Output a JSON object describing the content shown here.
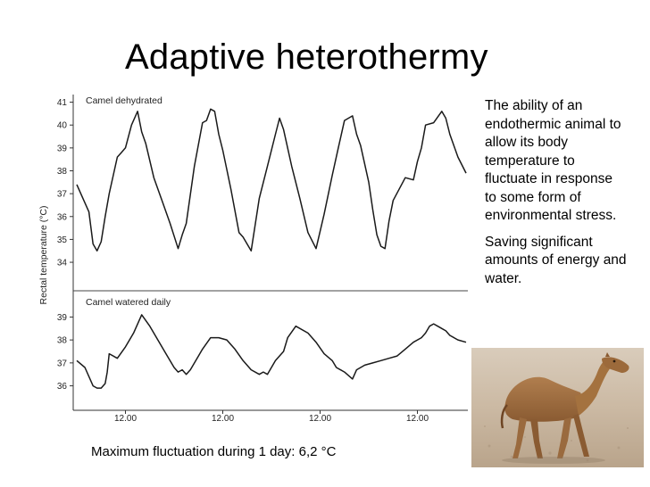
{
  "slide": {
    "title": "Adaptive heterothermy",
    "description": [
      "The ability of an endothermic animal to allow its body temperature to fluctuate in response to some form of environmental stress.",
      "Saving significant amounts of energy and water."
    ],
    "caption": "Maximum fluctuation during 1 day: 6,2 °C"
  },
  "photo": {
    "subject": "camel-icon"
  },
  "chart_data": {
    "type": "line",
    "ylabel": "Rectal temperature (°C)",
    "x_tick_labels": [
      "12.00",
      "12.00",
      "12.00",
      "12.00"
    ],
    "x_tick_hours": [
      12,
      36,
      60,
      84
    ],
    "xlim": [
      0,
      96
    ],
    "line_color": "#1a1a1a",
    "panels": [
      {
        "name": "Camel dehydrated",
        "ylim": [
          33.3,
          41.1
        ],
        "yticks": [
          34,
          35,
          36,
          37,
          38,
          39,
          40,
          41
        ],
        "x": [
          0,
          1,
          3,
          4,
          5,
          6,
          7,
          8,
          10,
          11,
          12,
          13.5,
          15,
          16,
          17,
          19,
          21,
          23,
          25,
          26,
          27,
          29,
          31,
          32,
          33,
          34,
          35,
          36,
          38,
          40,
          41,
          43,
          45,
          47,
          49,
          50,
          51,
          53,
          55,
          57,
          59,
          61,
          63,
          64.5,
          66,
          68,
          69,
          70,
          72,
          73,
          74,
          75,
          76,
          77,
          78,
          81,
          83,
          84,
          85,
          86,
          88,
          90,
          91,
          92,
          94,
          96
        ],
        "y": [
          37.4,
          37.0,
          36.2,
          34.8,
          34.5,
          34.9,
          36.0,
          37.0,
          38.6,
          38.8,
          39.0,
          40.0,
          40.6,
          39.7,
          39.2,
          37.7,
          36.7,
          35.7,
          34.6,
          35.2,
          35.7,
          38.2,
          40.1,
          40.2,
          40.7,
          40.6,
          39.6,
          38.9,
          37.2,
          35.3,
          35.1,
          34.5,
          36.8,
          38.2,
          39.6,
          40.3,
          39.8,
          38.2,
          36.8,
          35.3,
          34.6,
          36.1,
          37.8,
          39.0,
          40.2,
          40.4,
          39.6,
          39.1,
          37.5,
          36.3,
          35.2,
          34.7,
          34.6,
          35.8,
          36.7,
          37.7,
          37.6,
          38.4,
          39.0,
          40.0,
          40.1,
          40.6,
          40.3,
          39.6,
          38.6,
          37.9
        ]
      },
      {
        "name": "Camel watered daily",
        "ylim": [
          35.4,
          39.6
        ],
        "yticks": [
          36,
          37,
          38,
          39
        ],
        "x": [
          0,
          2,
          4,
          5,
          6,
          7,
          7.5,
          8,
          10,
          12,
          14,
          16,
          18,
          20,
          22,
          24,
          25,
          26,
          27,
          28,
          30,
          31,
          33,
          35,
          37,
          39,
          41,
          43,
          45,
          46,
          47,
          49,
          51,
          52,
          54,
          57,
          59,
          61,
          63,
          64,
          66,
          68,
          69,
          71,
          73,
          75,
          77,
          79,
          81,
          83,
          85,
          86,
          87,
          88,
          89,
          90,
          91,
          92,
          94,
          96
        ],
        "y": [
          37.1,
          36.8,
          36.0,
          35.9,
          35.9,
          36.1,
          36.6,
          37.4,
          37.2,
          37.7,
          38.3,
          39.1,
          38.6,
          38.0,
          37.4,
          36.8,
          36.6,
          36.7,
          36.5,
          36.7,
          37.3,
          37.6,
          38.1,
          38.1,
          38.0,
          37.6,
          37.1,
          36.7,
          36.5,
          36.6,
          36.5,
          37.1,
          37.5,
          38.1,
          38.6,
          38.3,
          37.9,
          37.4,
          37.1,
          36.8,
          36.6,
          36.3,
          36.7,
          36.9,
          37.0,
          37.1,
          37.2,
          37.3,
          37.6,
          37.9,
          38.1,
          38.3,
          38.6,
          38.7,
          38.6,
          38.5,
          38.4,
          38.2,
          38.0,
          37.9
        ]
      }
    ]
  }
}
